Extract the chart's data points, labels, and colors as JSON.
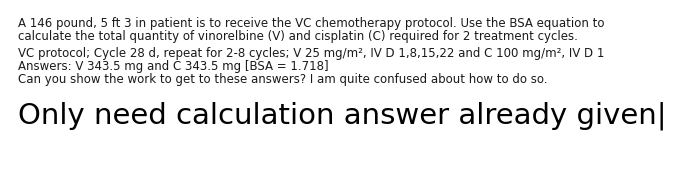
{
  "line1": "A 146 pound, 5 ft 3 in patient is to receive the VC chemotherapy protocol. Use the BSA equation to",
  "line2": "calculate the total quantity of vinorelbine (V) and cisplatin (C) required for 2 treatment cycles.",
  "line3": "VC protocol; Cycle 28 d, repeat for 2-8 cycles; V 25 mg/m², IV D 1,8,15,22 and C 100 mg/m², IV D 1",
  "line4": "Answers: V 343.5 mg and C 343.5 mg [BSA = 1.718]",
  "line5": "Can you show the work to get to these answers? I am quite confused about how to do so.",
  "big_text": "Only need calculation answer already given|",
  "bg_color": "#ffffff",
  "small_fontsize": 8.5,
  "big_fontsize": 21.0,
  "text_color": "#1a1a1a",
  "cursor_color": "#000000"
}
